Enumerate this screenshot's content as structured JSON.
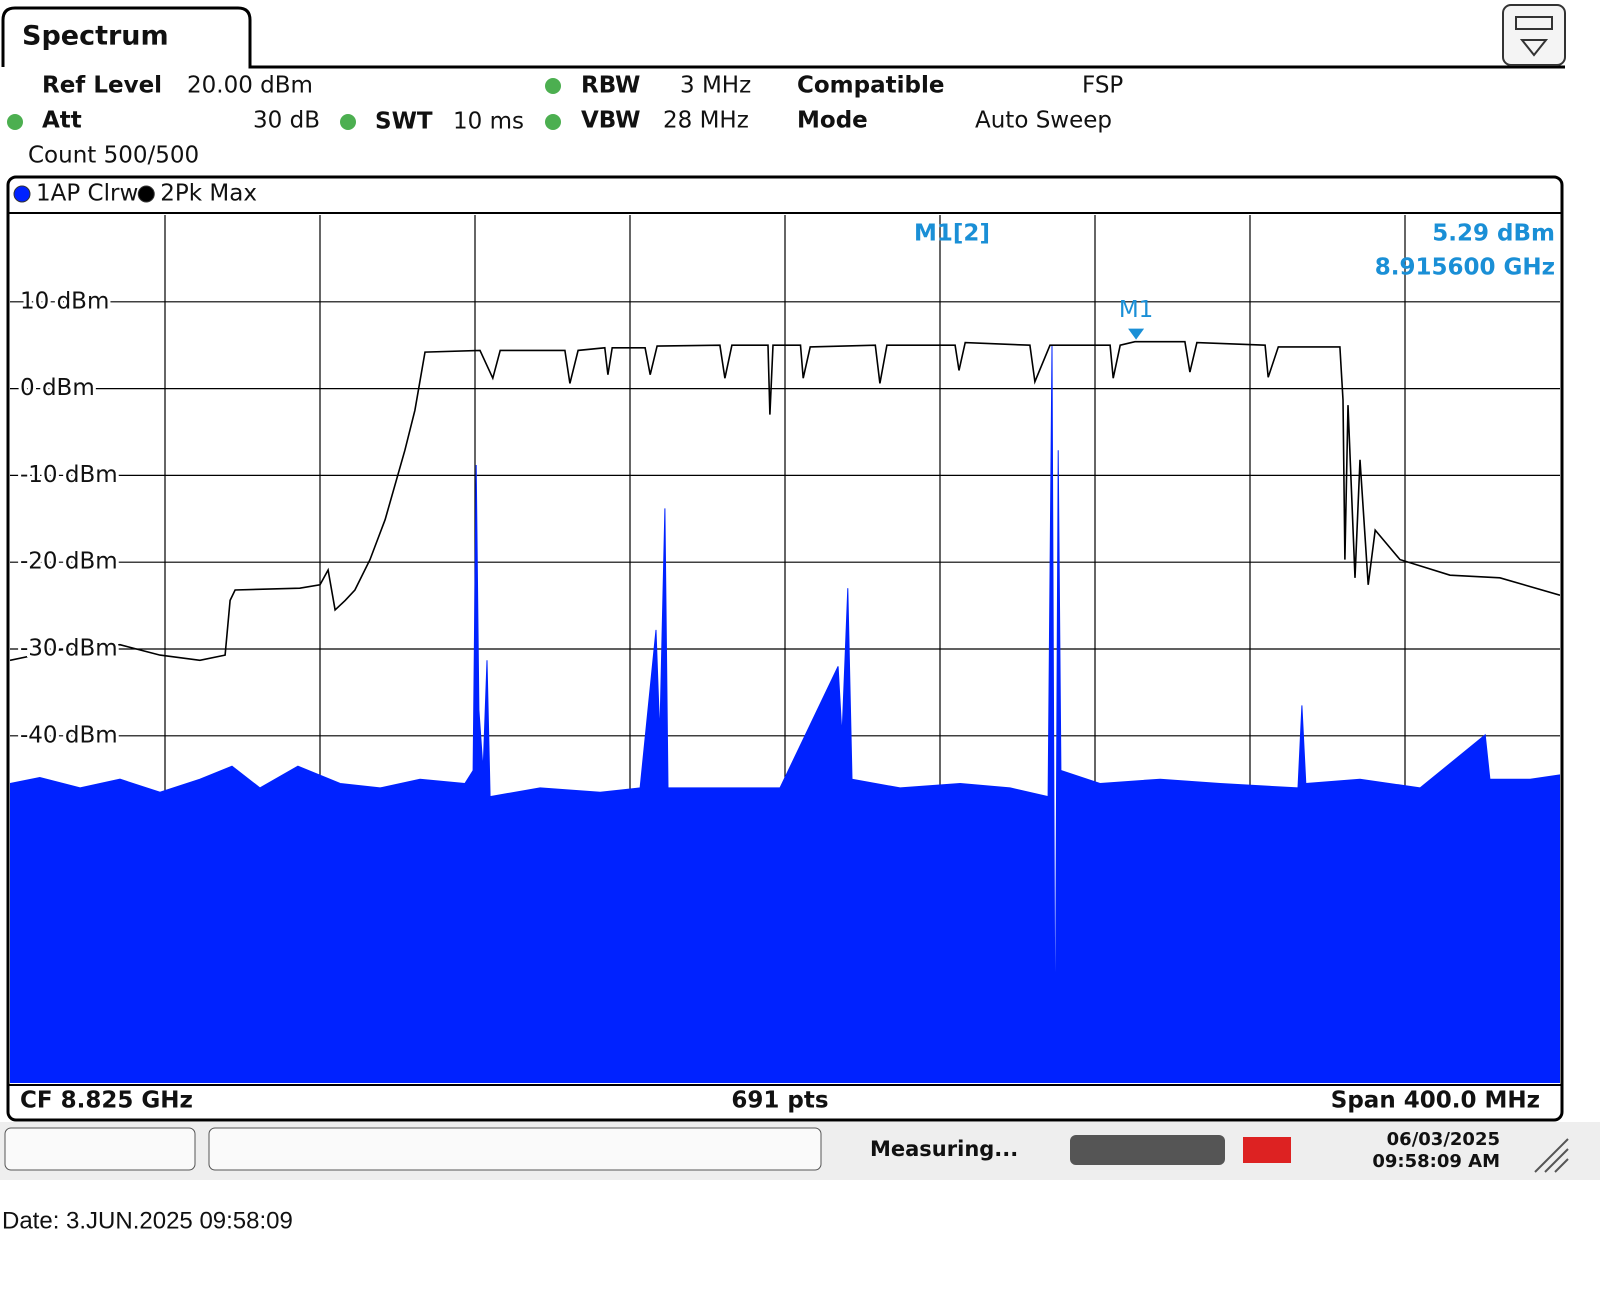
{
  "header": {
    "tab": "Spectrum",
    "ref_level_label": "Ref Level",
    "ref_level": "20.00 dBm",
    "att_label": "Att",
    "att": "30 dB",
    "swt_label": "SWT",
    "swt": "10 ms",
    "rbw_label": "RBW",
    "rbw": "3 MHz",
    "vbw_label": "VBW",
    "vbw": "28 MHz",
    "compatible_label": "Compatible",
    "compatible": "FSP",
    "mode_label": "Mode",
    "mode": "Auto Sweep",
    "count": "Count 500/500"
  },
  "chart_data": {
    "type": "line",
    "xlim": [
      8.625,
      9.025
    ],
    "ylim": [
      -80,
      20
    ],
    "yticks": [
      {
        "value": 10,
        "label": "10 dBm"
      },
      {
        "value": 0,
        "label": "0 dBm"
      },
      {
        "value": -10,
        "label": "-10 dBm"
      },
      {
        "value": -20,
        "label": "-20 dBm"
      },
      {
        "value": -30,
        "label": "-30 dBm"
      },
      {
        "value": -40,
        "label": "-40 dBm"
      }
    ],
    "grid": true,
    "series": [
      {
        "name": "1AP Clrw",
        "color": "#0022ff",
        "fill": true,
        "x": [
          8.625,
          8.6327,
          8.6431,
          8.6534,
          8.6637,
          8.674,
          8.6823,
          8.6895,
          8.6993,
          8.7102,
          8.7205,
          8.7308,
          8.7424,
          8.7445,
          8.7453,
          8.746,
          8.7471,
          8.7481,
          8.7489,
          8.7618,
          8.7773,
          8.7876,
          8.7917,
          8.7927,
          8.794,
          8.7948,
          8.8082,
          8.8237,
          8.8387,
          8.8397,
          8.8412,
          8.8423,
          8.8547,
          8.8702,
          8.8831,
          8.8929,
          8.8939,
          8.8947,
          8.8955,
          8.8962,
          8.9063,
          8.9218,
          8.9373,
          8.9574,
          8.9584,
          8.9594,
          8.9734,
          8.9889,
          9.0057,
          9.0069,
          9.0173,
          9.025
        ],
        "values": [
          -45.5,
          -44.8,
          -46,
          -45,
          -46.5,
          -45,
          -43.5,
          -46,
          -43.5,
          -45.5,
          -46,
          -45,
          -45.5,
          -44,
          -8.8,
          -37,
          -44,
          -31.3,
          -47,
          -46,
          -46.5,
          -46,
          -27.8,
          -40,
          -13.8,
          -46,
          -46,
          -46,
          -32,
          -40,
          -23,
          -45,
          -46,
          -45.5,
          -46,
          -47,
          5.0,
          -80,
          -7.1,
          -44,
          -45.5,
          -45,
          -45.5,
          -46,
          -36.5,
          -45.5,
          -45,
          -46,
          -39.9,
          -45,
          -45,
          -44.5
        ]
      },
      {
        "name": "2Pk Max",
        "color": "#000000",
        "fill": false,
        "x": [
          8.625,
          8.6379,
          8.6534,
          8.6637,
          8.674,
          8.6805,
          8.6818,
          8.6831,
          8.6998,
          8.705,
          8.7071,
          8.7089,
          8.7115,
          8.714,
          8.7179,
          8.7218,
          8.7269,
          8.7295,
          8.7321,
          8.7463,
          8.7496,
          8.7515,
          8.7682,
          8.7695,
          8.7716,
          8.7785,
          8.7793,
          8.7804,
          8.7889,
          8.7902,
          8.792,
          8.8082,
          8.8095,
          8.8113,
          8.8206,
          8.8211,
          8.8219,
          8.829,
          8.8297,
          8.8315,
          8.8483,
          8.8495,
          8.8513,
          8.8689,
          8.8699,
          8.8715,
          8.8882,
          8.8895,
          8.8934,
          8.9089,
          8.9097,
          8.9115,
          8.9153,
          8.9282,
          8.9295,
          8.9313,
          8.9489,
          8.9497,
          8.9523,
          8.9682,
          8.969,
          8.9695,
          8.9703,
          8.9721,
          8.9734,
          8.9755,
          8.9773,
          8.9837,
          8.9966,
          9.0095,
          9.025
        ],
        "values": [
          -31.3,
          -30.1,
          -29.5,
          -30.7,
          -31.3,
          -30.7,
          -24.4,
          -23.2,
          -23.0,
          -22.6,
          -20.9,
          -25.5,
          -24.4,
          -23.2,
          -19.7,
          -15.1,
          -7.1,
          -2.5,
          4.2,
          4.4,
          1.2,
          4.4,
          4.4,
          0.6,
          4.4,
          4.7,
          1.6,
          4.7,
          4.7,
          1.6,
          4.9,
          5.0,
          1.2,
          5.0,
          5.0,
          -3.0,
          5.0,
          5.0,
          1.2,
          4.8,
          5.0,
          0.6,
          5.0,
          5.0,
          2.1,
          5.3,
          5.0,
          0.8,
          5.0,
          5.0,
          1.2,
          5.0,
          5.4,
          5.4,
          1.9,
          5.3,
          5.0,
          1.3,
          4.8,
          4.8,
          -1.3,
          -19.7,
          -1.9,
          -21.8,
          -8.2,
          -22.6,
          -16.3,
          -19.7,
          -21.5,
          -21.8,
          -23.8
        ]
      }
    ],
    "marker": {
      "label": "M1",
      "readout": "M1[2]",
      "value_label": "5.29 dBm",
      "freq_label": "8.915600 GHz",
      "x": 8.9156,
      "y": 5.29,
      "color": "#1a8fd6"
    },
    "cf": "CF 8.825 GHz",
    "points": "691 pts",
    "span": "Span 400.0 MHz"
  },
  "status": {
    "state": "Measuring...",
    "date": "06/03/2025",
    "time": "09:58:09 AM"
  },
  "footer": {
    "date": "Date: 3.JUN.2025  09:58:09"
  }
}
